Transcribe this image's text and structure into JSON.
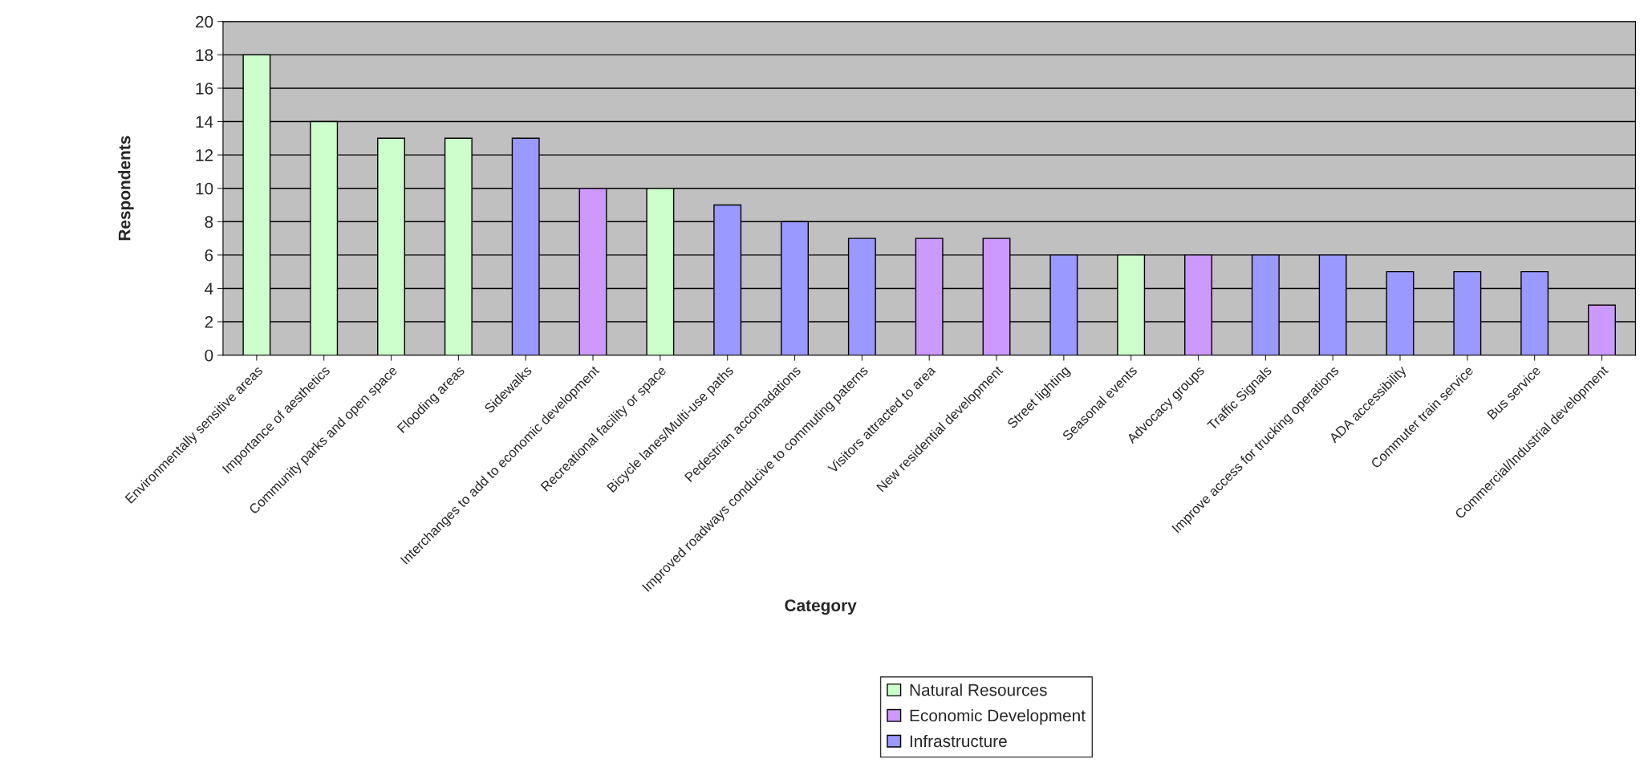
{
  "chart_data": {
    "type": "bar",
    "xlabel": "Category",
    "ylabel": "Respondents",
    "categories": [
      "Environmentally sensitive areas",
      "Importance of aesthetics",
      "Community parks and open space",
      "Flooding areas",
      "Sidewalks",
      "Interchanges to add to economic development",
      "Recreational facility or space",
      "Bicycle lanes/Multi-use paths",
      "Pedestrian accomadations",
      "Improved roadways conducive to commuting paterns",
      "Visitors attracted to area",
      "New residential development",
      "Street lighting",
      "Seasonal events",
      "Advocacy groups",
      "Traffic Signals",
      "Improve access for trucking operations",
      "ADA accessibility",
      "Commuter train service",
      "Bus service",
      "Commercial/Industrial development"
    ],
    "series": [
      {
        "name": "Natural Resources",
        "color": "#ccffcc",
        "values": [
          18,
          14,
          13,
          13,
          null,
          null,
          10,
          null,
          null,
          null,
          null,
          null,
          null,
          6,
          null,
          null,
          null,
          null,
          null,
          null,
          null
        ]
      },
      {
        "name": "Economic Development",
        "color": "#cc99ff",
        "values": [
          null,
          null,
          null,
          null,
          null,
          10,
          null,
          null,
          null,
          null,
          7,
          7,
          null,
          null,
          6,
          null,
          null,
          null,
          null,
          null,
          3
        ]
      },
      {
        "name": "Infrastructure",
        "color": "#9999ff",
        "values": [
          null,
          null,
          null,
          null,
          13,
          null,
          null,
          9,
          8,
          7,
          null,
          null,
          6,
          null,
          null,
          6,
          6,
          5,
          5,
          5,
          null
        ]
      }
    ],
    "ylim": [
      0,
      20
    ],
    "yticks": [
      0,
      2,
      4,
      6,
      8,
      10,
      12,
      14,
      16,
      18,
      20
    ],
    "grid": "y",
    "legend": "bottom"
  }
}
